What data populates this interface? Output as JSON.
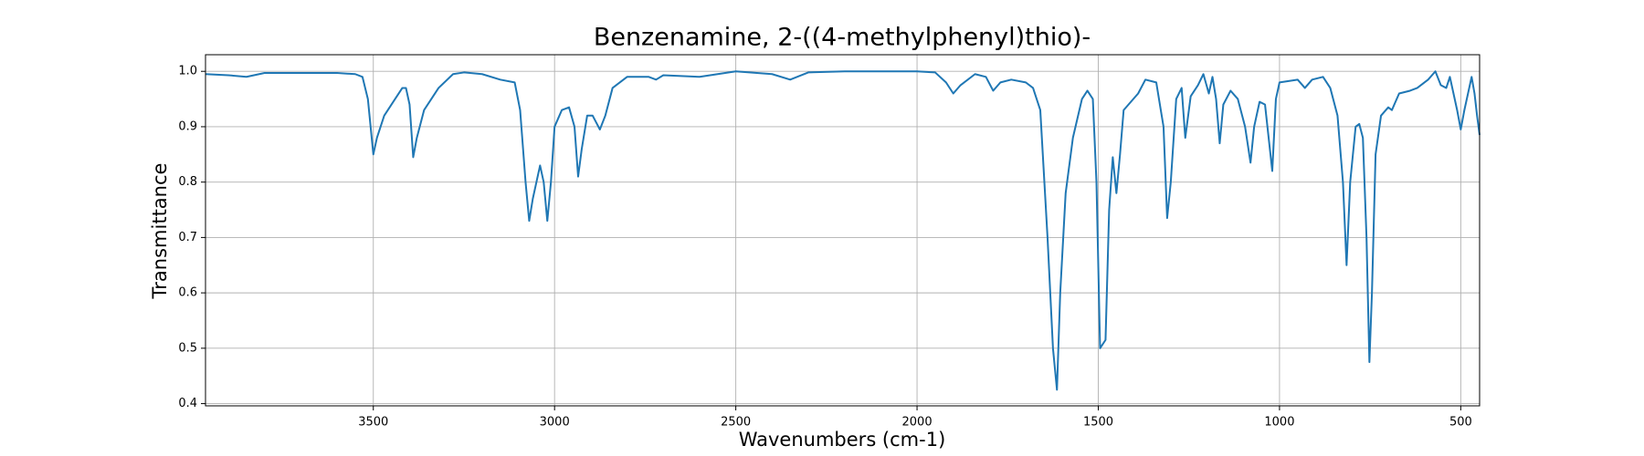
{
  "chart_data": {
    "type": "line",
    "title": "Benzenamine, 2-((4-methylphenyl)thio)-",
    "xlabel": "Wavenumbers (cm-1)",
    "ylabel": "Transmittance",
    "color": "#1f77b4",
    "grid": true,
    "xlim": [
      3963,
      448
    ],
    "ylim": [
      0.396,
      1.03
    ],
    "xticks": [
      3500,
      3000,
      2500,
      2000,
      1500,
      1000,
      500
    ],
    "yticks": [
      0.4,
      0.5,
      0.6,
      0.7,
      0.8,
      0.9,
      {
        "value": 1.0,
        "label": "1.0"
      }
    ],
    "x": [
      3963,
      3900,
      3850,
      3800,
      3700,
      3600,
      3550,
      3530,
      3515,
      3500,
      3490,
      3470,
      3440,
      3420,
      3410,
      3400,
      3390,
      3380,
      3360,
      3320,
      3280,
      3250,
      3200,
      3150,
      3110,
      3095,
      3080,
      3070,
      3060,
      3040,
      3030,
      3020,
      3010,
      3000,
      2980,
      2960,
      2945,
      2935,
      2925,
      2910,
      2895,
      2875,
      2860,
      2840,
      2800,
      2740,
      2720,
      2700,
      2600,
      2500,
      2400,
      2350,
      2300,
      2200,
      2000,
      1950,
      1920,
      1900,
      1880,
      1840,
      1810,
      1790,
      1770,
      1740,
      1700,
      1680,
      1660,
      1640,
      1625,
      1614,
      1605,
      1590,
      1570,
      1545,
      1530,
      1515,
      1505,
      1495,
      1480,
      1470,
      1460,
      1450,
      1440,
      1430,
      1410,
      1390,
      1370,
      1340,
      1320,
      1310,
      1300,
      1285,
      1270,
      1260,
      1245,
      1225,
      1210,
      1195,
      1185,
      1175,
      1165,
      1155,
      1135,
      1115,
      1095,
      1080,
      1070,
      1055,
      1040,
      1025,
      1020,
      1010,
      1000,
      950,
      930,
      910,
      880,
      860,
      840,
      825,
      815,
      805,
      790,
      780,
      770,
      760,
      752,
      745,
      735,
      720,
      700,
      690,
      670,
      640,
      620,
      590,
      570,
      555,
      540,
      530,
      510,
      500,
      490,
      470,
      462,
      455,
      448
    ],
    "y": [
      0.995,
      0.993,
      0.99,
      0.997,
      0.997,
      0.997,
      0.995,
      0.99,
      0.95,
      0.85,
      0.88,
      0.92,
      0.95,
      0.97,
      0.97,
      0.94,
      0.845,
      0.88,
      0.93,
      0.97,
      0.995,
      0.998,
      0.995,
      0.985,
      0.98,
      0.93,
      0.8,
      0.73,
      0.77,
      0.83,
      0.8,
      0.73,
      0.8,
      0.9,
      0.93,
      0.935,
      0.9,
      0.81,
      0.86,
      0.92,
      0.92,
      0.895,
      0.92,
      0.97,
      0.99,
      0.99,
      0.985,
      0.993,
      0.99,
      1.0,
      0.995,
      0.985,
      0.998,
      1.0,
      1.0,
      0.998,
      0.98,
      0.96,
      0.975,
      0.995,
      0.99,
      0.965,
      0.98,
      0.985,
      0.98,
      0.97,
      0.93,
      0.7,
      0.5,
      0.425,
      0.6,
      0.78,
      0.88,
      0.95,
      0.965,
      0.95,
      0.8,
      0.5,
      0.515,
      0.75,
      0.845,
      0.78,
      0.85,
      0.93,
      0.945,
      0.96,
      0.985,
      0.98,
      0.9,
      0.735,
      0.8,
      0.95,
      0.97,
      0.88,
      0.955,
      0.975,
      0.995,
      0.96,
      0.99,
      0.95,
      0.87,
      0.94,
      0.965,
      0.95,
      0.9,
      0.835,
      0.9,
      0.945,
      0.94,
      0.85,
      0.82,
      0.95,
      0.98,
      0.985,
      0.97,
      0.985,
      0.99,
      0.97,
      0.92,
      0.8,
      0.65,
      0.8,
      0.9,
      0.905,
      0.88,
      0.7,
      0.475,
      0.6,
      0.85,
      0.92,
      0.935,
      0.93,
      0.96,
      0.965,
      0.97,
      0.985,
      1.0,
      0.975,
      0.97,
      0.99,
      0.93,
      0.895,
      0.93,
      0.99,
      0.96,
      0.92,
      0.885
    ]
  }
}
